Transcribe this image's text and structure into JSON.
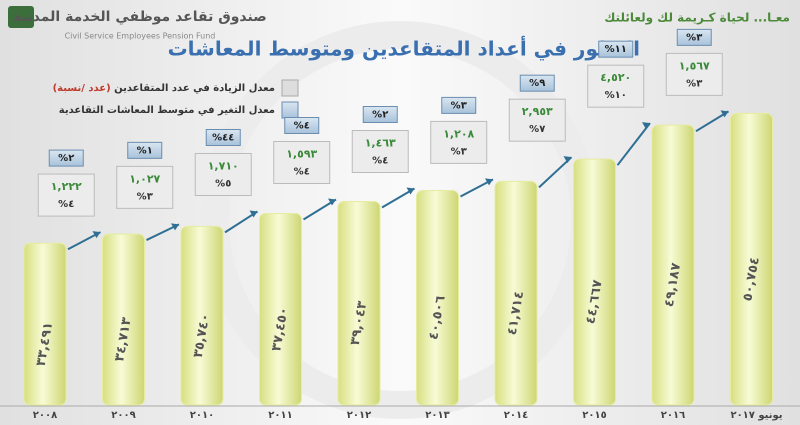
{
  "header": {
    "org_name_ar": "صندوق تقاعد موظفي الخدمة المدنية",
    "org_name_en": "Civil Service Employees Pension Fund",
    "slogan": "معـا... لحياة كـريمة لك ولعائلتك"
  },
  "legend": {
    "count_rate": "معدل الزيادة في عدد المتقاعدين",
    "count_rate_units": "(عدد /نسبة)",
    "pension_rate": "معدل التغير في متوسط المعاشات التقاعدية"
  },
  "chart_data": {
    "type": "bar",
    "title": "التطور في أعداد المتقاعدين ومتوسط المعاشات",
    "categories": [
      "٢٠٠٨",
      "٢٠٠٩",
      "٢٠١٠",
      "٢٠١١",
      "٢٠١٢",
      "٢٠١٣",
      "٢٠١٤",
      "٢٠١٥",
      "٢٠١٦",
      "يونيو ٢٠١٧"
    ],
    "values": [
      33491,
      34713,
      35740,
      37450,
      39043,
      40506,
      41714,
      44667,
      49187,
      50754
    ],
    "value_labels": [
      "٣٣,٤٩١",
      "٣٤,٧١٣",
      "٣٥,٧٤٠",
      "٣٧,٤٥٠",
      "٣٩,٠٤٣",
      "٤٠,٥٠٦",
      "٤١,٧١٤",
      "٤٤,٦٦٧",
      "٤٩,١٨٧",
      "٥٠,٧٥٤"
    ],
    "color": "#e6eca0",
    "ylim": [
      12000,
      52000
    ],
    "increases": [
      {
        "count": "١,٢٢٢",
        "count_pct": "%٤",
        "pension_pct": "%٢"
      },
      {
        "count": "١,٠٢٧",
        "count_pct": "%٣",
        "pension_pct": "%١"
      },
      {
        "count": "١,٧١٠",
        "count_pct": "%٥",
        "pension_pct": "%٤٤"
      },
      {
        "count": "١,٥٩٣",
        "count_pct": "%٤",
        "pension_pct": "%٤"
      },
      {
        "count": "١,٤٦٣",
        "count_pct": "%٤",
        "pension_pct": "%٢"
      },
      {
        "count": "١,٢٠٨",
        "count_pct": "%٣",
        "pension_pct": "%٣"
      },
      {
        "count": "٢,٩٥٣",
        "count_pct": "%٧",
        "pension_pct": "%٩"
      },
      {
        "count": "٤,٥٢٠",
        "count_pct": "%١٠",
        "pension_pct": "%١١"
      },
      {
        "count": "١,٥٦٧",
        "count_pct": "%٣",
        "pension_pct": "%٣"
      }
    ]
  }
}
